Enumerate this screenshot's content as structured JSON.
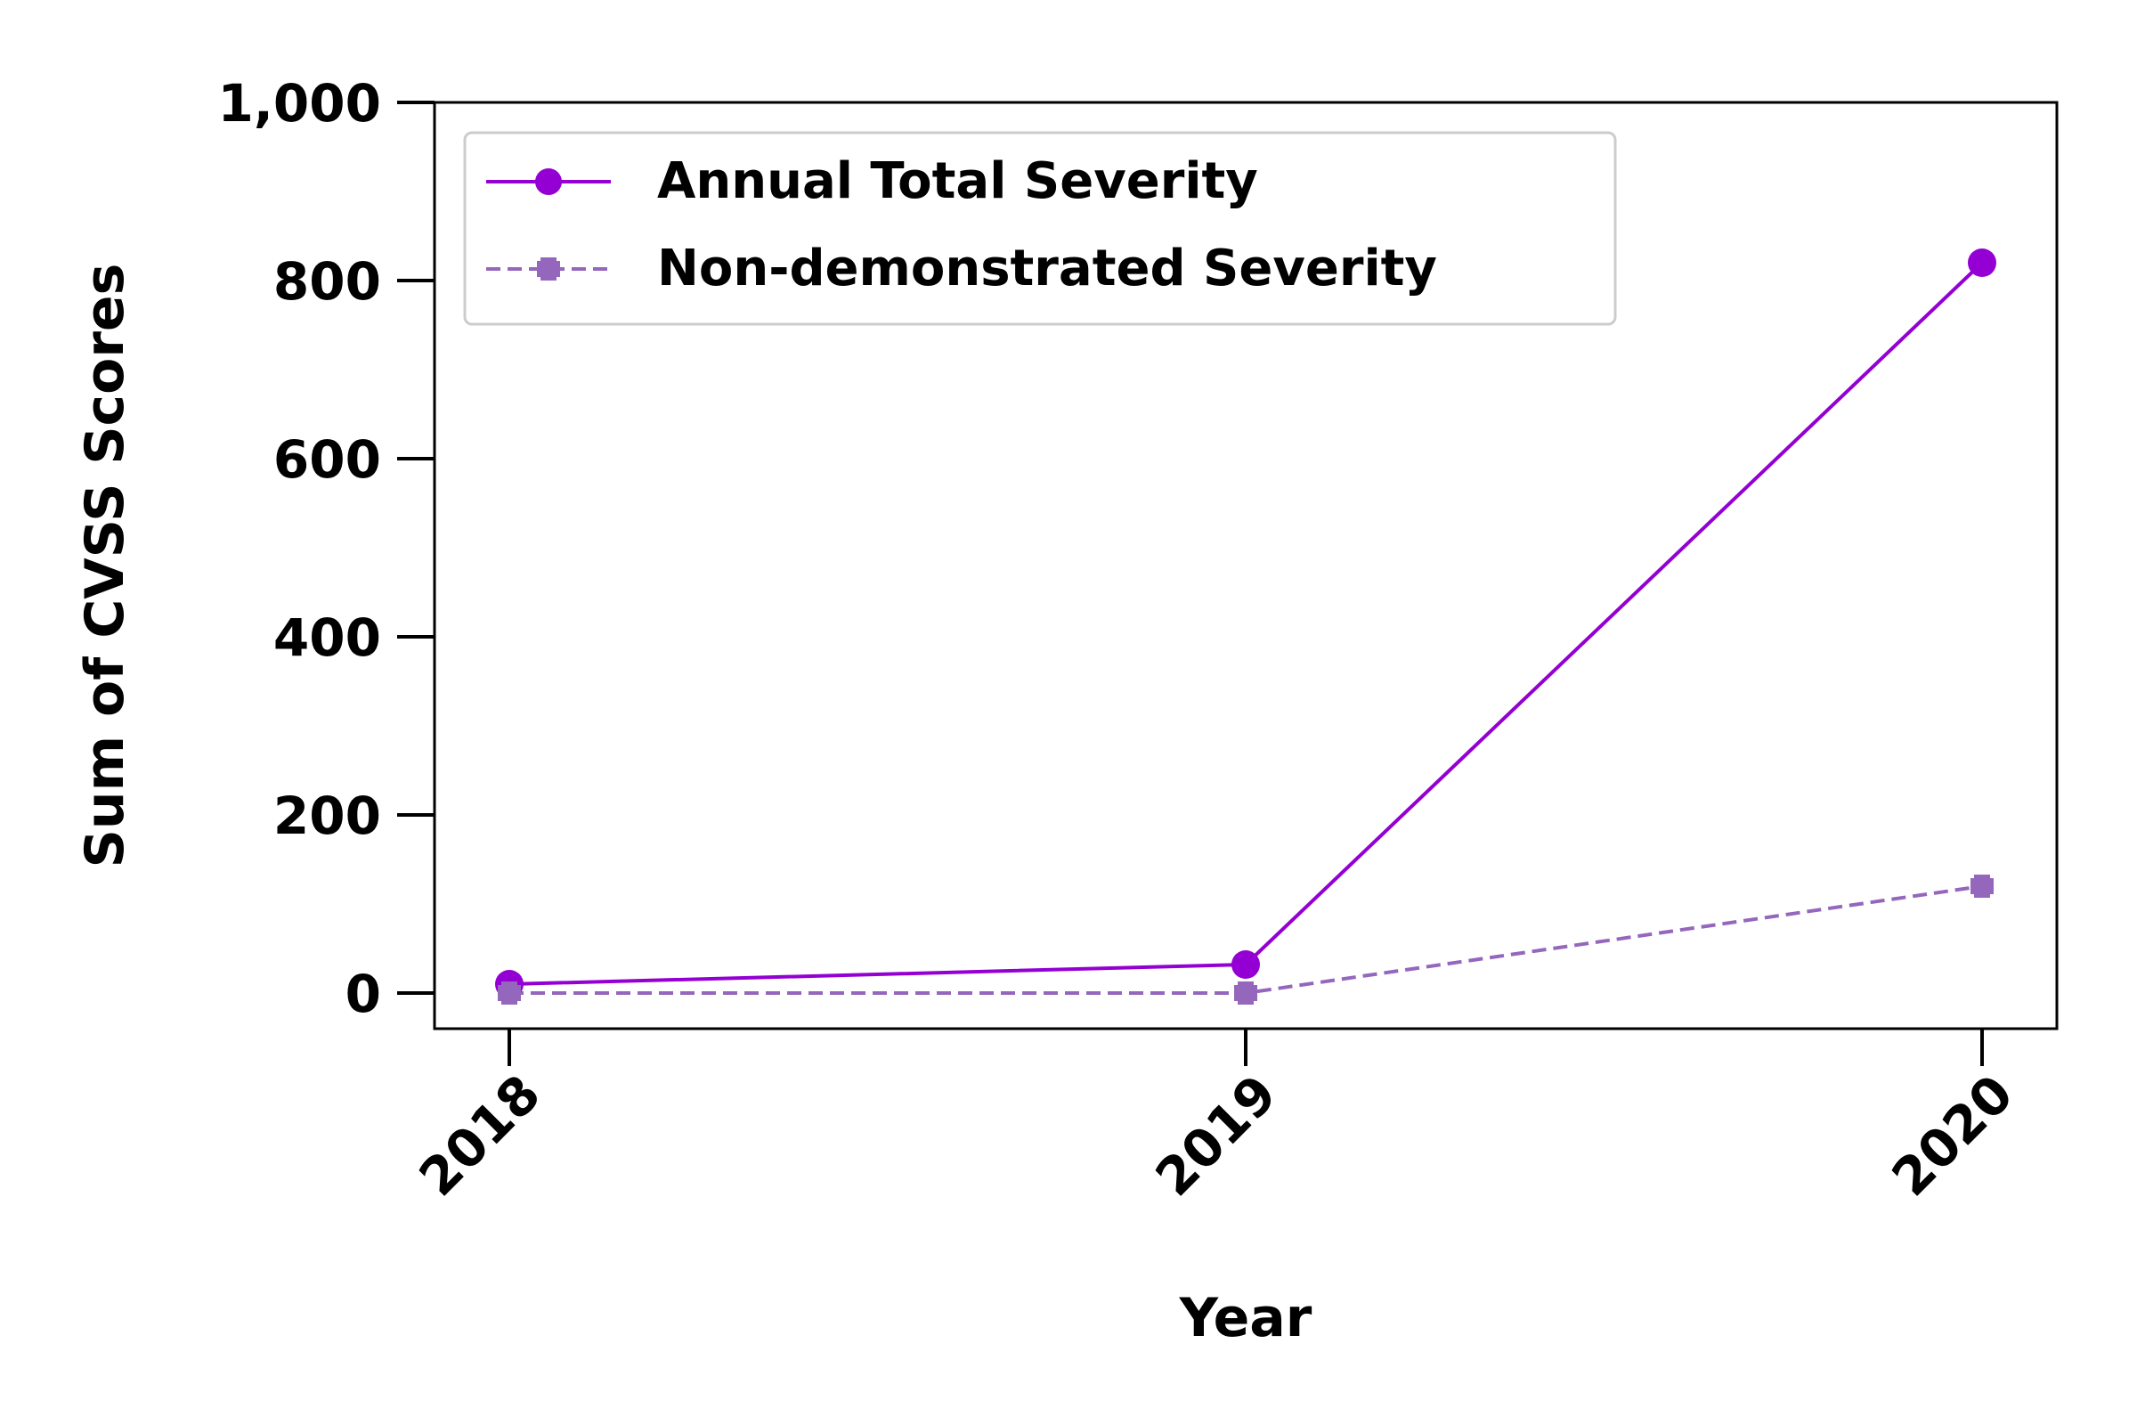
{
  "chart_data": {
    "type": "line",
    "x": [
      "2018",
      "2019",
      "2020"
    ],
    "xlabel": "Year",
    "ylabel": "Sum of CVSS Scores",
    "ylim": [
      -40,
      1000
    ],
    "yticks": [
      0,
      200,
      400,
      600,
      800,
      1000
    ],
    "ytick_labels": [
      "0",
      "200",
      "400",
      "600",
      "800",
      "1,000"
    ],
    "grid": false,
    "legend_position": "upper-left",
    "series": [
      {
        "name": "Annual Total Severity",
        "values": [
          10,
          32,
          820
        ],
        "color": "#9400D3",
        "line_style": "solid",
        "marker": "circle"
      },
      {
        "name": "Non-demonstrated Severity",
        "values": [
          0,
          0,
          120
        ],
        "color": "#9467BD",
        "line_style": "dashed",
        "marker": "plus"
      }
    ]
  }
}
